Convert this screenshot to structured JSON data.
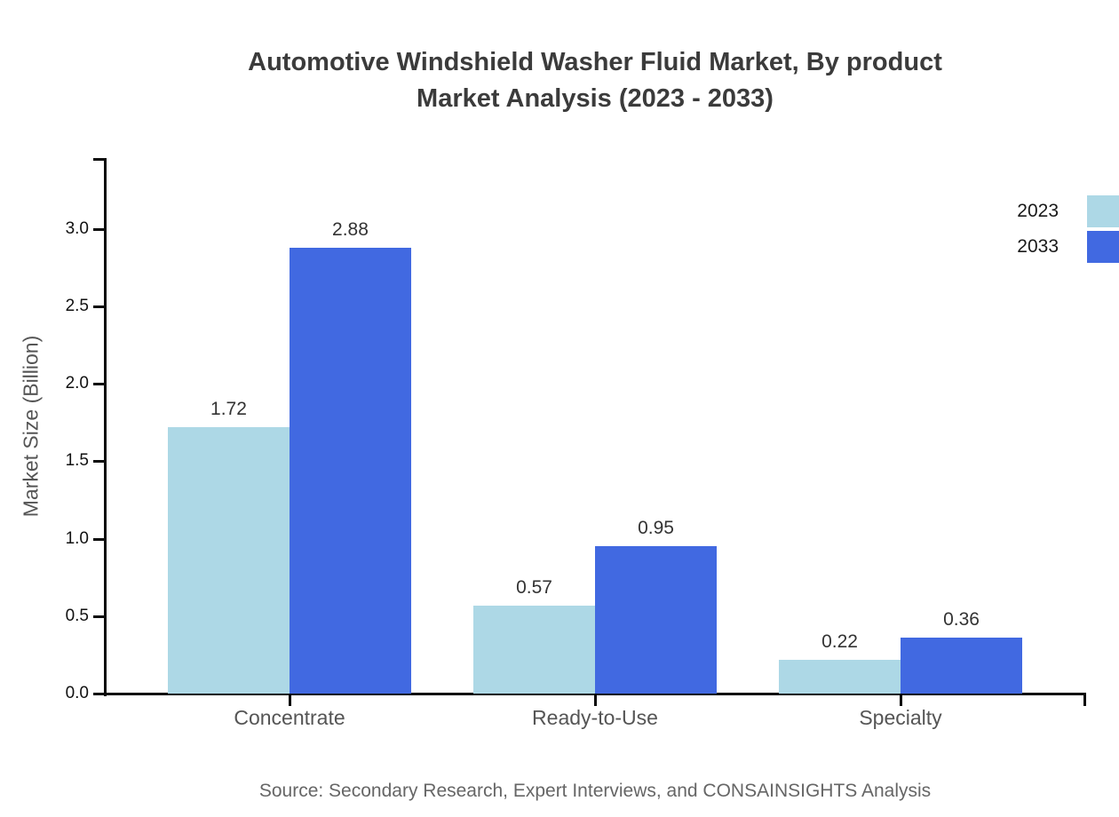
{
  "title": {
    "line1": "Automotive Windshield Washer Fluid Market, By product",
    "line2": "Market Analysis (2023 - 2033)"
  },
  "chart_data": {
    "type": "bar",
    "categories": [
      "Concentrate",
      "Ready-to-Use",
      "Specialty"
    ],
    "series": [
      {
        "name": "2023",
        "color": "#ADD8E6",
        "values": [
          1.72,
          0.57,
          0.22
        ]
      },
      {
        "name": "2033",
        "color": "#4169E1",
        "values": [
          2.88,
          0.95,
          0.36
        ]
      }
    ],
    "title": "Automotive Windshield Washer Fluid Market, By product Market Analysis (2023 - 2033)",
    "xlabel": "",
    "ylabel": "Market Size (Billion)",
    "yticks": [
      "0.0",
      "0.5",
      "1.0",
      "1.5",
      "2.0",
      "2.5",
      "3.0"
    ],
    "ylim": [
      0,
      3.456
    ],
    "value_labels": [
      [
        "1.72",
        "0.57",
        "0.22"
      ],
      [
        "2.88",
        "0.95",
        "0.36"
      ]
    ],
    "legend_position": "right",
    "grid": false
  },
  "source": "Source: Secondary Research, Expert Interviews, and CONSAINSIGHTS Analysis"
}
